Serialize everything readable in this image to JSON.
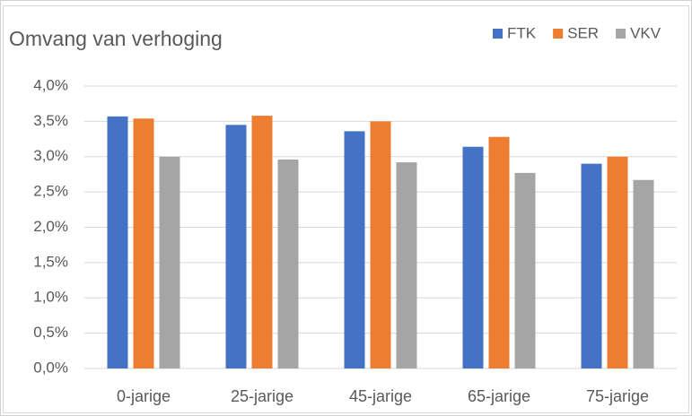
{
  "chart_data": {
    "type": "bar",
    "title": "Omvang van verhoging",
    "categories": [
      "0-jarige",
      "25-jarige",
      "45-jarige",
      "65-jarige",
      "75-jarige"
    ],
    "series": [
      {
        "name": "FTK",
        "color": "#4472c4",
        "values": [
          3.57,
          3.45,
          3.36,
          3.14,
          2.9
        ]
      },
      {
        "name": "SER",
        "color": "#ed7d31",
        "values": [
          3.54,
          3.58,
          3.5,
          3.28,
          3.0
        ]
      },
      {
        "name": "VKV",
        "color": "#a5a5a5",
        "values": [
          3.0,
          2.96,
          2.92,
          2.77,
          2.67
        ]
      }
    ],
    "ylim": [
      0,
      4
    ],
    "yticks": [
      {
        "value": 0,
        "label": "0,0%"
      },
      {
        "value": 0.5,
        "label": "0,5%"
      },
      {
        "value": 1,
        "label": "1,0%"
      },
      {
        "value": 1.5,
        "label": "1,5%"
      },
      {
        "value": 2,
        "label": "2,0%"
      },
      {
        "value": 2.5,
        "label": "2,5%"
      },
      {
        "value": 3,
        "label": "3,0%"
      },
      {
        "value": 3.5,
        "label": "3,5%"
      },
      {
        "value": 4,
        "label": "4,0%"
      }
    ],
    "grid": true,
    "legend": "top-right"
  }
}
